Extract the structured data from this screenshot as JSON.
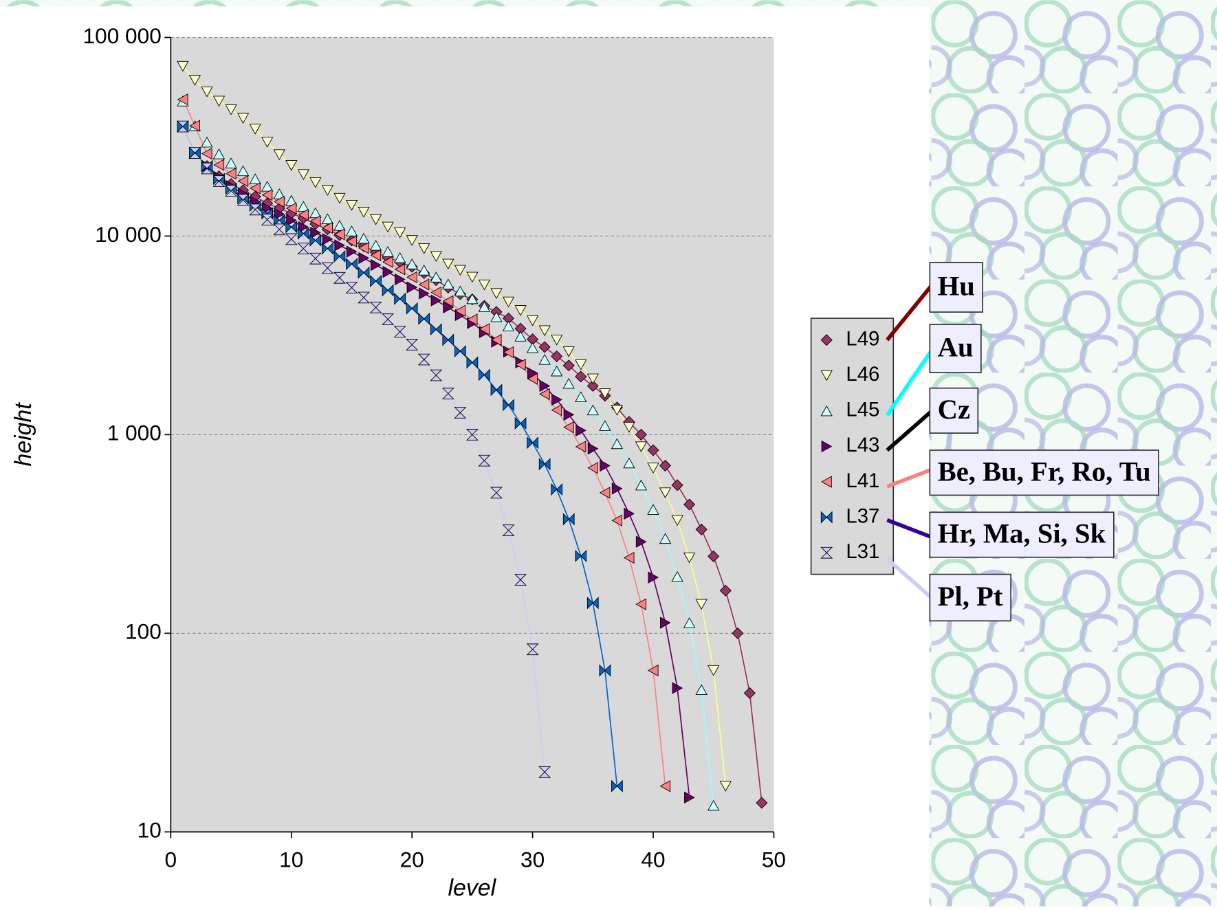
{
  "chart_data": {
    "type": "line",
    "x_label": "level",
    "y_label": "height",
    "yscale": "log",
    "grid": true,
    "xlim": [
      0,
      50
    ],
    "xticks": [
      0,
      10,
      20,
      30,
      40,
      50
    ],
    "ylim": [
      10,
      100000
    ],
    "yticks": [
      10,
      100,
      {
        "value": 1000,
        "label": "1 000"
      },
      {
        "value": 10000,
        "label": "10 000"
      },
      {
        "value": 100000,
        "label": "100 000"
      }
    ],
    "legend_position": "right",
    "series": [
      {
        "name": "L49",
        "color": "#993366",
        "line_color": "#993366",
        "marker": "diamond",
        "x": [
          1,
          2,
          3,
          4,
          5,
          6,
          7,
          8,
          9,
          10,
          11,
          12,
          13,
          14,
          15,
          16,
          17,
          18,
          19,
          20,
          21,
          22,
          23,
          24,
          25,
          26,
          27,
          28,
          29,
          30,
          31,
          32,
          33,
          34,
          35,
          36,
          37,
          38,
          39,
          40,
          41,
          42,
          43,
          44,
          45,
          46,
          47,
          48,
          49
        ],
        "values": [
          35600,
          26200,
          22500,
          20000,
          18300,
          17000,
          15800,
          14600,
          13800,
          13000,
          12300,
          11500,
          10800,
          10100,
          9500,
          8900,
          8300,
          7800,
          7400,
          7000,
          6500,
          6000,
          5500,
          5100,
          4800,
          4450,
          4150,
          3850,
          3420,
          3020,
          2760,
          2480,
          2230,
          1960,
          1760,
          1570,
          1370,
          1160,
          1000,
          835,
          698,
          557,
          445,
          333,
          244,
          164,
          100,
          50,
          14
        ]
      },
      {
        "name": "L46",
        "color": "#ffffcc",
        "line_color": "#ffff80",
        "marker": "triangle-down",
        "x": [
          1,
          2,
          3,
          4,
          5,
          6,
          7,
          8,
          9,
          10,
          11,
          12,
          13,
          14,
          15,
          16,
          17,
          18,
          19,
          20,
          21,
          22,
          23,
          24,
          25,
          26,
          27,
          28,
          29,
          30,
          31,
          32,
          33,
          34,
          35,
          36,
          37,
          38,
          39,
          40,
          41,
          42,
          43,
          44,
          45,
          46
        ],
        "values": [
          71600,
          60900,
          53300,
          47800,
          43300,
          39200,
          34600,
          29700,
          25700,
          22700,
          20400,
          18600,
          17000,
          15500,
          14300,
          13200,
          12100,
          11100,
          10400,
          9500,
          8650,
          7900,
          7230,
          6730,
          6210,
          5680,
          5140,
          4660,
          4220,
          3750,
          3340,
          3000,
          2620,
          2250,
          1910,
          1610,
          1330,
          1090,
          870,
          680,
          510,
          370,
          240,
          140,
          65,
          17
        ]
      },
      {
        "name": "L45",
        "color": "#ccffff",
        "line_color": "#99ffff",
        "marker": "triangle-up",
        "x": [
          1,
          2,
          3,
          4,
          5,
          6,
          7,
          8,
          9,
          10,
          11,
          12,
          13,
          14,
          15,
          16,
          17,
          18,
          19,
          20,
          21,
          22,
          23,
          24,
          25,
          26,
          27,
          28,
          29,
          30,
          31,
          32,
          33,
          34,
          35,
          36,
          37,
          38,
          39,
          40,
          41,
          42,
          43,
          44,
          45
        ],
        "values": [
          47800,
          35900,
          29700,
          25900,
          23300,
          21300,
          19400,
          17800,
          16300,
          15100,
          14100,
          13100,
          12200,
          11300,
          10600,
          9740,
          8980,
          8350,
          7780,
          7230,
          6730,
          6210,
          5730,
          5280,
          4830,
          4410,
          3920,
          3520,
          3130,
          2740,
          2390,
          2090,
          1810,
          1550,
          1330,
          1110,
          900,
          720,
          557,
          420,
          300,
          193,
          113,
          52,
          13.6
        ]
      },
      {
        "name": "L43",
        "color": "#660066",
        "line_color": "#660066",
        "marker": "triangle-right",
        "x": [
          1,
          2,
          3,
          4,
          5,
          6,
          7,
          8,
          9,
          10,
          11,
          12,
          13,
          14,
          15,
          16,
          17,
          18,
          19,
          20,
          21,
          22,
          23,
          24,
          25,
          26,
          27,
          28,
          29,
          30,
          31,
          32,
          33,
          34,
          35,
          36,
          37,
          38,
          39,
          40,
          41,
          42,
          43
        ],
        "values": [
          35600,
          26200,
          22500,
          19800,
          17800,
          16300,
          14900,
          13800,
          12900,
          12000,
          11100,
          10400,
          9650,
          8980,
          8350,
          7750,
          7150,
          6600,
          6050,
          5520,
          5140,
          4740,
          4370,
          4000,
          3650,
          3280,
          2940,
          2620,
          2310,
          2040,
          1760,
          1500,
          1260,
          1050,
          850,
          698,
          535,
          400,
          289,
          191,
          113,
          53,
          14.9
        ]
      },
      {
        "name": "L41",
        "color": "#ff8080",
        "line_color": "#ff8080",
        "marker": "triangle-left",
        "x": [
          1,
          2,
          3,
          4,
          5,
          6,
          7,
          8,
          9,
          10,
          11,
          12,
          13,
          14,
          15,
          16,
          17,
          18,
          19,
          20,
          21,
          22,
          23,
          24,
          25,
          26,
          27,
          28,
          29,
          30,
          31,
          32,
          33,
          34,
          35,
          36,
          37,
          38,
          39,
          40,
          41
        ],
        "values": [
          48700,
          35900,
          26000,
          22800,
          20600,
          18900,
          17400,
          16100,
          14900,
          13800,
          12800,
          11900,
          11000,
          10200,
          9400,
          8700,
          8000,
          7400,
          6800,
          6200,
          5700,
          5200,
          4700,
          4200,
          3800,
          3400,
          3000,
          2600,
          2250,
          1910,
          1600,
          1330,
          1090,
          870,
          680,
          510,
          370,
          240,
          140,
          65,
          17
        ]
      },
      {
        "name": "L37",
        "color": "#0066cc",
        "line_color": "#0066cc",
        "marker": "bowtie",
        "x": [
          1,
          2,
          3,
          4,
          5,
          6,
          7,
          8,
          9,
          10,
          11,
          12,
          13,
          14,
          15,
          16,
          17,
          18,
          19,
          20,
          21,
          22,
          23,
          24,
          25,
          26,
          27,
          28,
          29,
          30,
          31,
          32,
          33,
          34,
          35,
          36,
          37
        ],
        "values": [
          35600,
          26200,
          22500,
          19400,
          17300,
          15500,
          14200,
          13000,
          12000,
          11100,
          10300,
          9500,
          8650,
          7900,
          7230,
          6540,
          5930,
          5330,
          4830,
          4320,
          3830,
          3390,
          3000,
          2630,
          2310,
          2000,
          1680,
          1410,
          1140,
          910,
          710,
          530,
          375,
          245,
          142,
          65,
          17
        ]
      },
      {
        "name": "L31",
        "color": "#ccccff",
        "line_color": "#ccccff",
        "marker": "hourglass",
        "x": [
          1,
          2,
          3,
          4,
          5,
          6,
          7,
          8,
          9,
          10,
          11,
          12,
          13,
          14,
          15,
          16,
          17,
          18,
          19,
          20,
          21,
          22,
          23,
          24,
          25,
          26,
          27,
          28,
          29,
          30,
          31
        ],
        "values": [
          35600,
          26200,
          21900,
          18900,
          16900,
          15200,
          13600,
          12100,
          10800,
          9650,
          8650,
          7700,
          6900,
          6160,
          5500,
          4900,
          4370,
          3810,
          3300,
          2840,
          2390,
          1990,
          1610,
          1290,
          1000,
          740,
          510,
          330,
          186,
          83,
          20
        ]
      }
    ],
    "annotations": [
      {
        "text": "Hu",
        "color": "#800000"
      },
      {
        "text": "Au",
        "color": "#00ffff"
      },
      {
        "text": "Cz",
        "color": "#000000"
      },
      {
        "text": "Be, Bu, Fr, Ro, Tu",
        "color": "#ff8080"
      },
      {
        "text": "Hr, Ma, Si, Sk",
        "color": "#330099"
      },
      {
        "text": "Pl, Pt",
        "color": "#ccccff"
      }
    ]
  }
}
